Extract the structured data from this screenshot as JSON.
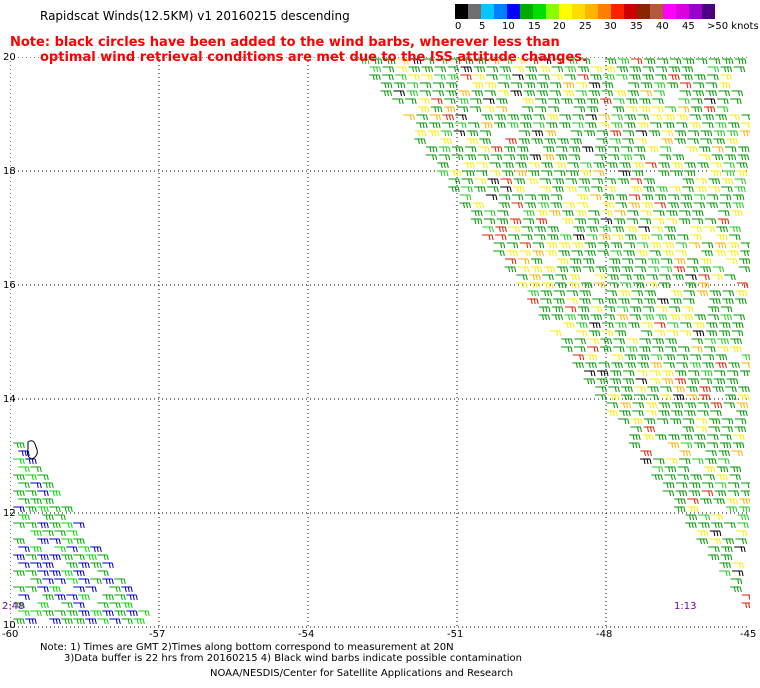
{
  "header": {
    "title": "Rapidscat Winds(12.5KM) v1 20160215 descending",
    "note_line1": "Note: black circles have been added to the wind barbs, wherever less than",
    "note_line2": "optimal wind retrieval conditions are met due to the ISS attitude changes."
  },
  "legend": {
    "labels": [
      "0",
      "5",
      "10",
      "15",
      "20",
      "25",
      "30",
      "35",
      "40",
      "45",
      ">50 knots"
    ],
    "colors": [
      "#000000",
      "#6e6e6e",
      "#00c8ff",
      "#0000ff",
      "#00cc00",
      "#ffff00",
      "#ffb400",
      "#ff7800",
      "#ff0000",
      "#804000",
      "#ff00ff",
      "#8000c0"
    ]
  },
  "map": {
    "lat_labels": [
      "20",
      "18",
      "16",
      "14",
      "12",
      "10"
    ],
    "lon_labels": [
      "-60",
      "-57",
      "-54",
      "-51",
      "-48",
      "-45"
    ],
    "lat_range": [
      10,
      20
    ],
    "lon_range": [
      -60,
      -45
    ],
    "grid": "dotted",
    "time_labels": [
      "2:48",
      "1:13"
    ]
  },
  "footer": {
    "line1": "Note: 1) Times are GMT 2)Times along bottom correspond to measurement at 20N",
    "line2": "3)Data buffer is 22 hrs from 20160215 4) Black wind barbs indicate possible contamination",
    "credit": "NOAA/NESDIS/Center for Satellite Applications and Research"
  }
}
